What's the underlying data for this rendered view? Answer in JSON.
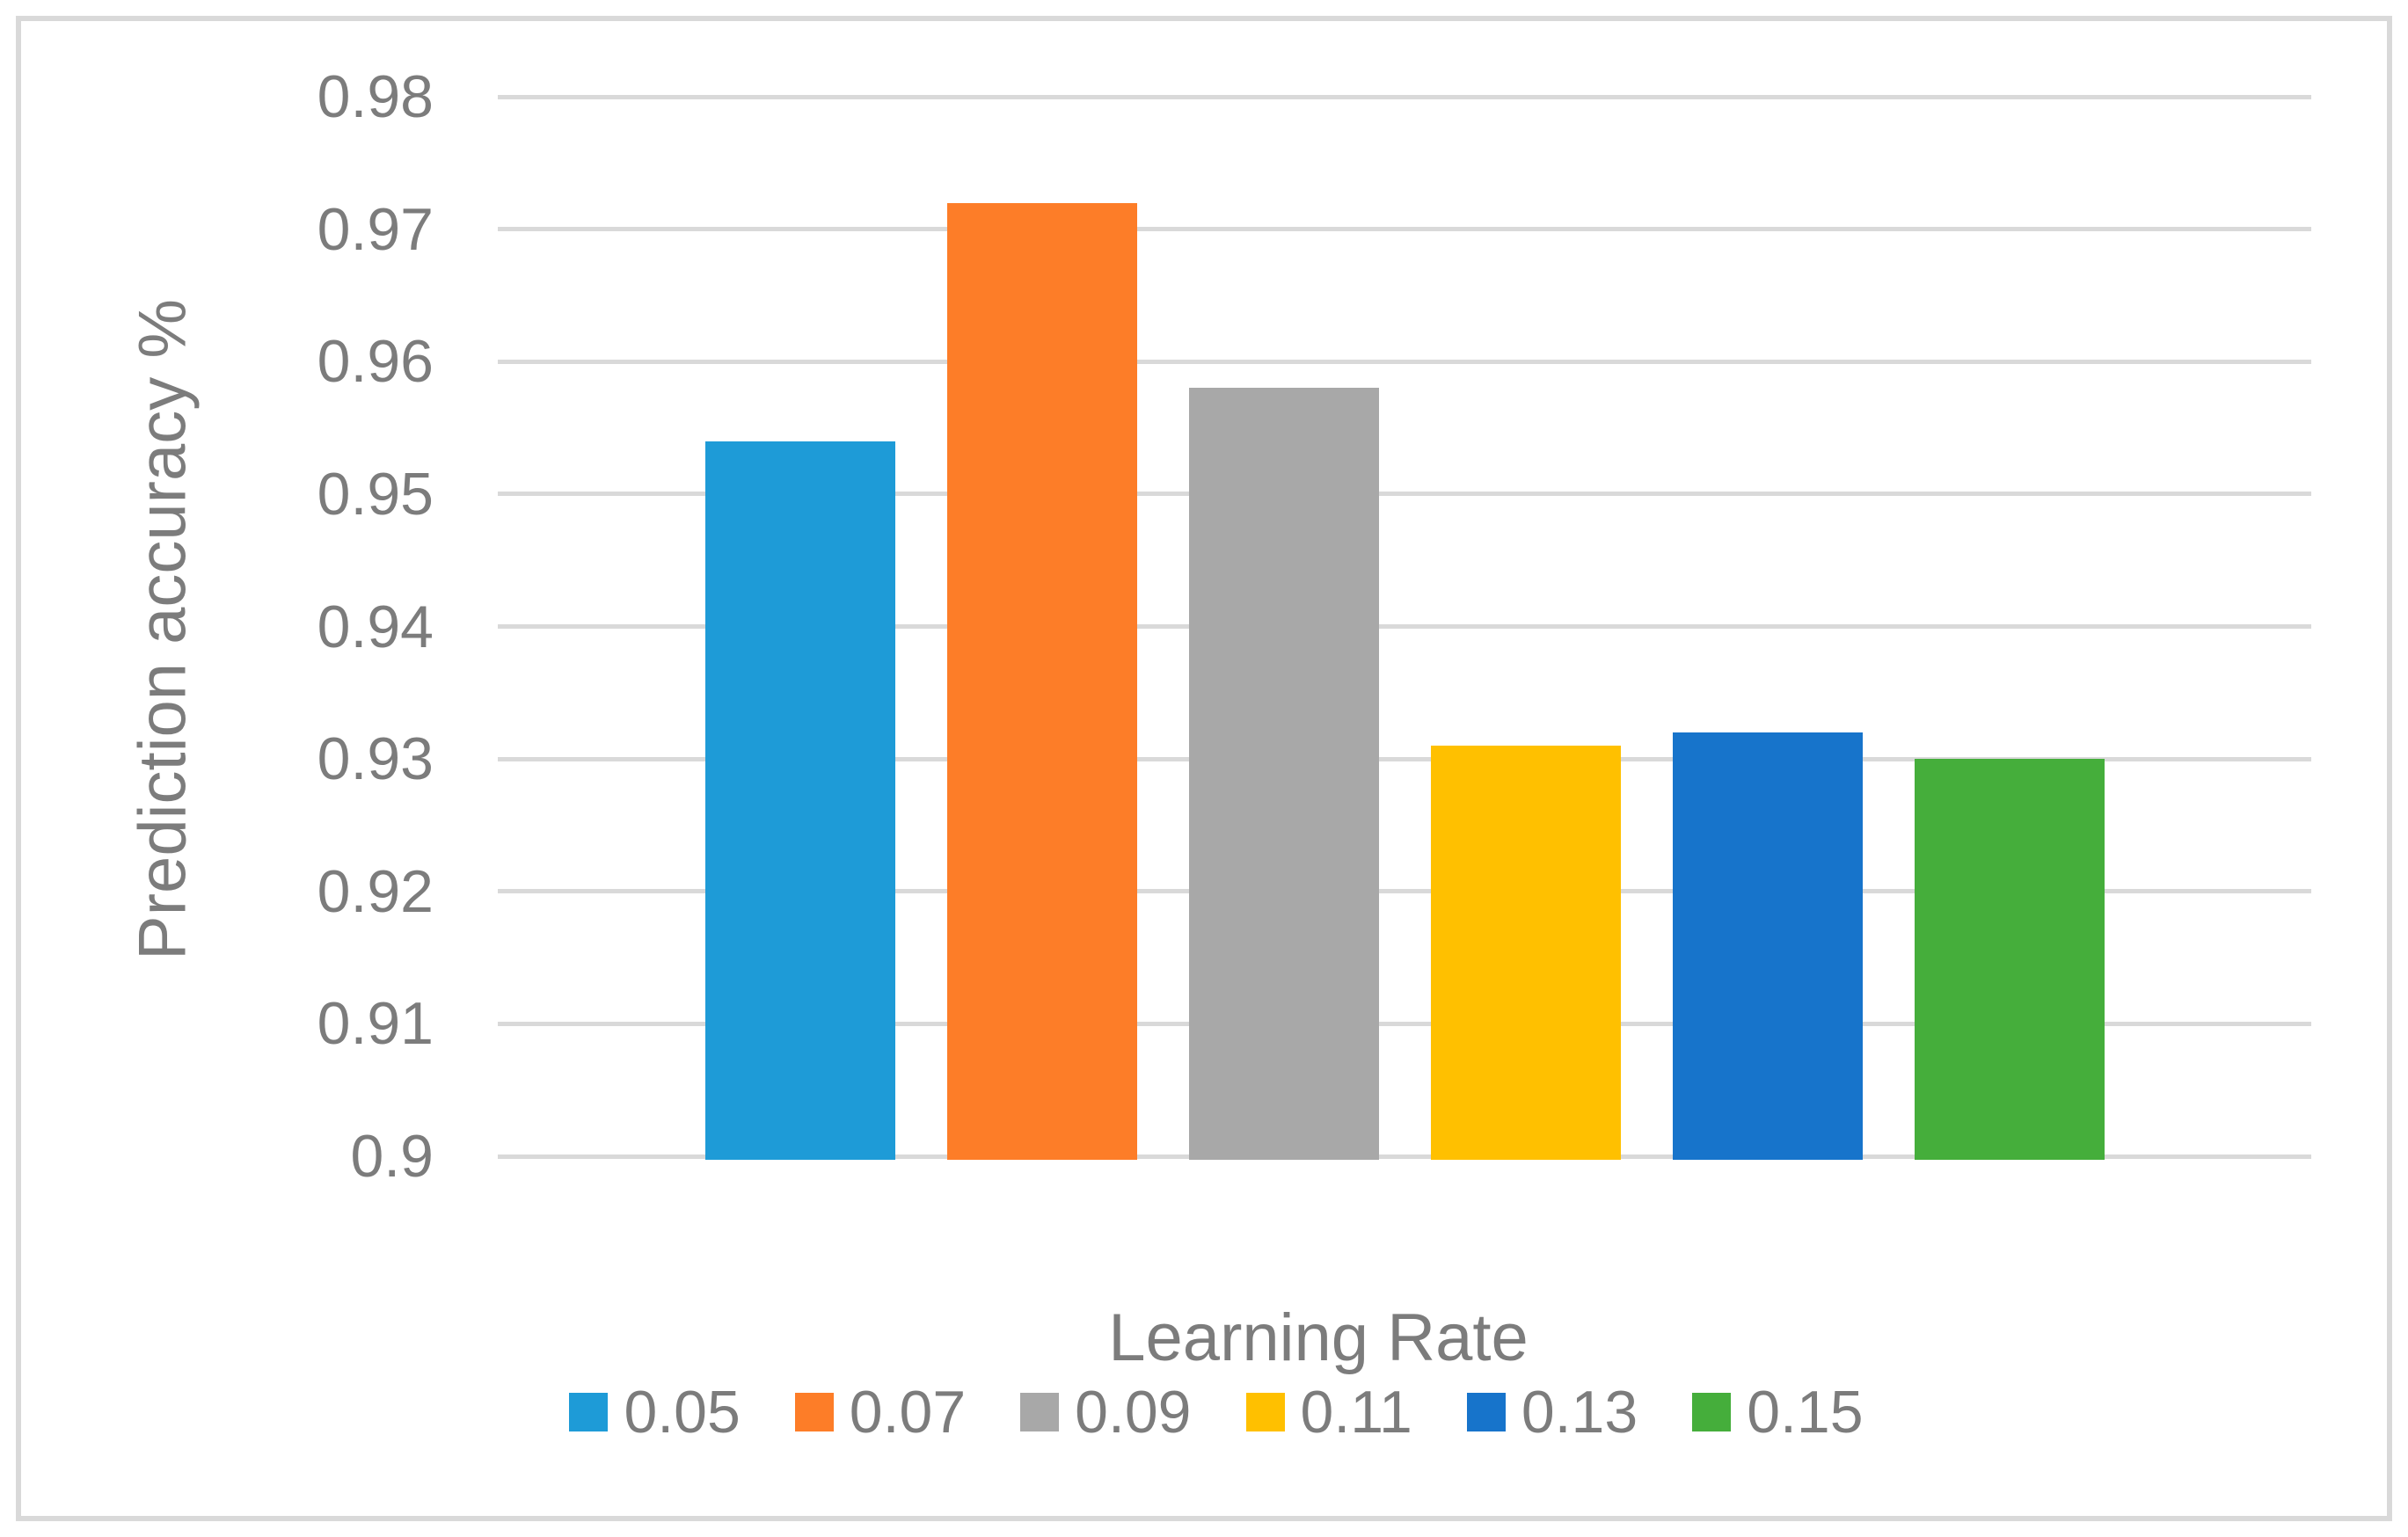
{
  "chart_data": {
    "type": "bar",
    "title": "",
    "xlabel": "Learning Rate",
    "ylabel": "Prediction accuracy %",
    "ylim": [
      0.9,
      0.98
    ],
    "ytick_step": 0.01,
    "ytick_labels": [
      "0.9",
      "0.91",
      "0.92",
      "0.93",
      "0.94",
      "0.95",
      "0.96",
      "0.97",
      "0.98"
    ],
    "categories": [
      "0.05",
      "0.07",
      "0.09",
      "0.11",
      "0.13",
      "0.15"
    ],
    "values": [
      0.954,
      0.972,
      0.958,
      0.931,
      0.932,
      0.93
    ],
    "series": [
      {
        "name": "0.05",
        "value": 0.954,
        "color": "#1E9BD7"
      },
      {
        "name": "0.07",
        "value": 0.972,
        "color": "#FD7D28"
      },
      {
        "name": "0.09",
        "value": 0.958,
        "color": "#A8A8A8"
      },
      {
        "name": "0.11",
        "value": 0.931,
        "color": "#FFC000"
      },
      {
        "name": "0.13",
        "value": 0.932,
        "color": "#1774CB"
      },
      {
        "name": "0.15",
        "value": 0.93,
        "color": "#45AE3B"
      }
    ],
    "legend_position": "bottom",
    "grid": true,
    "grid_color": "#D9D9D9",
    "border_color": "#D9D9D9",
    "text_color": "#7C7C7C",
    "background_color": "#FFFFFF"
  }
}
